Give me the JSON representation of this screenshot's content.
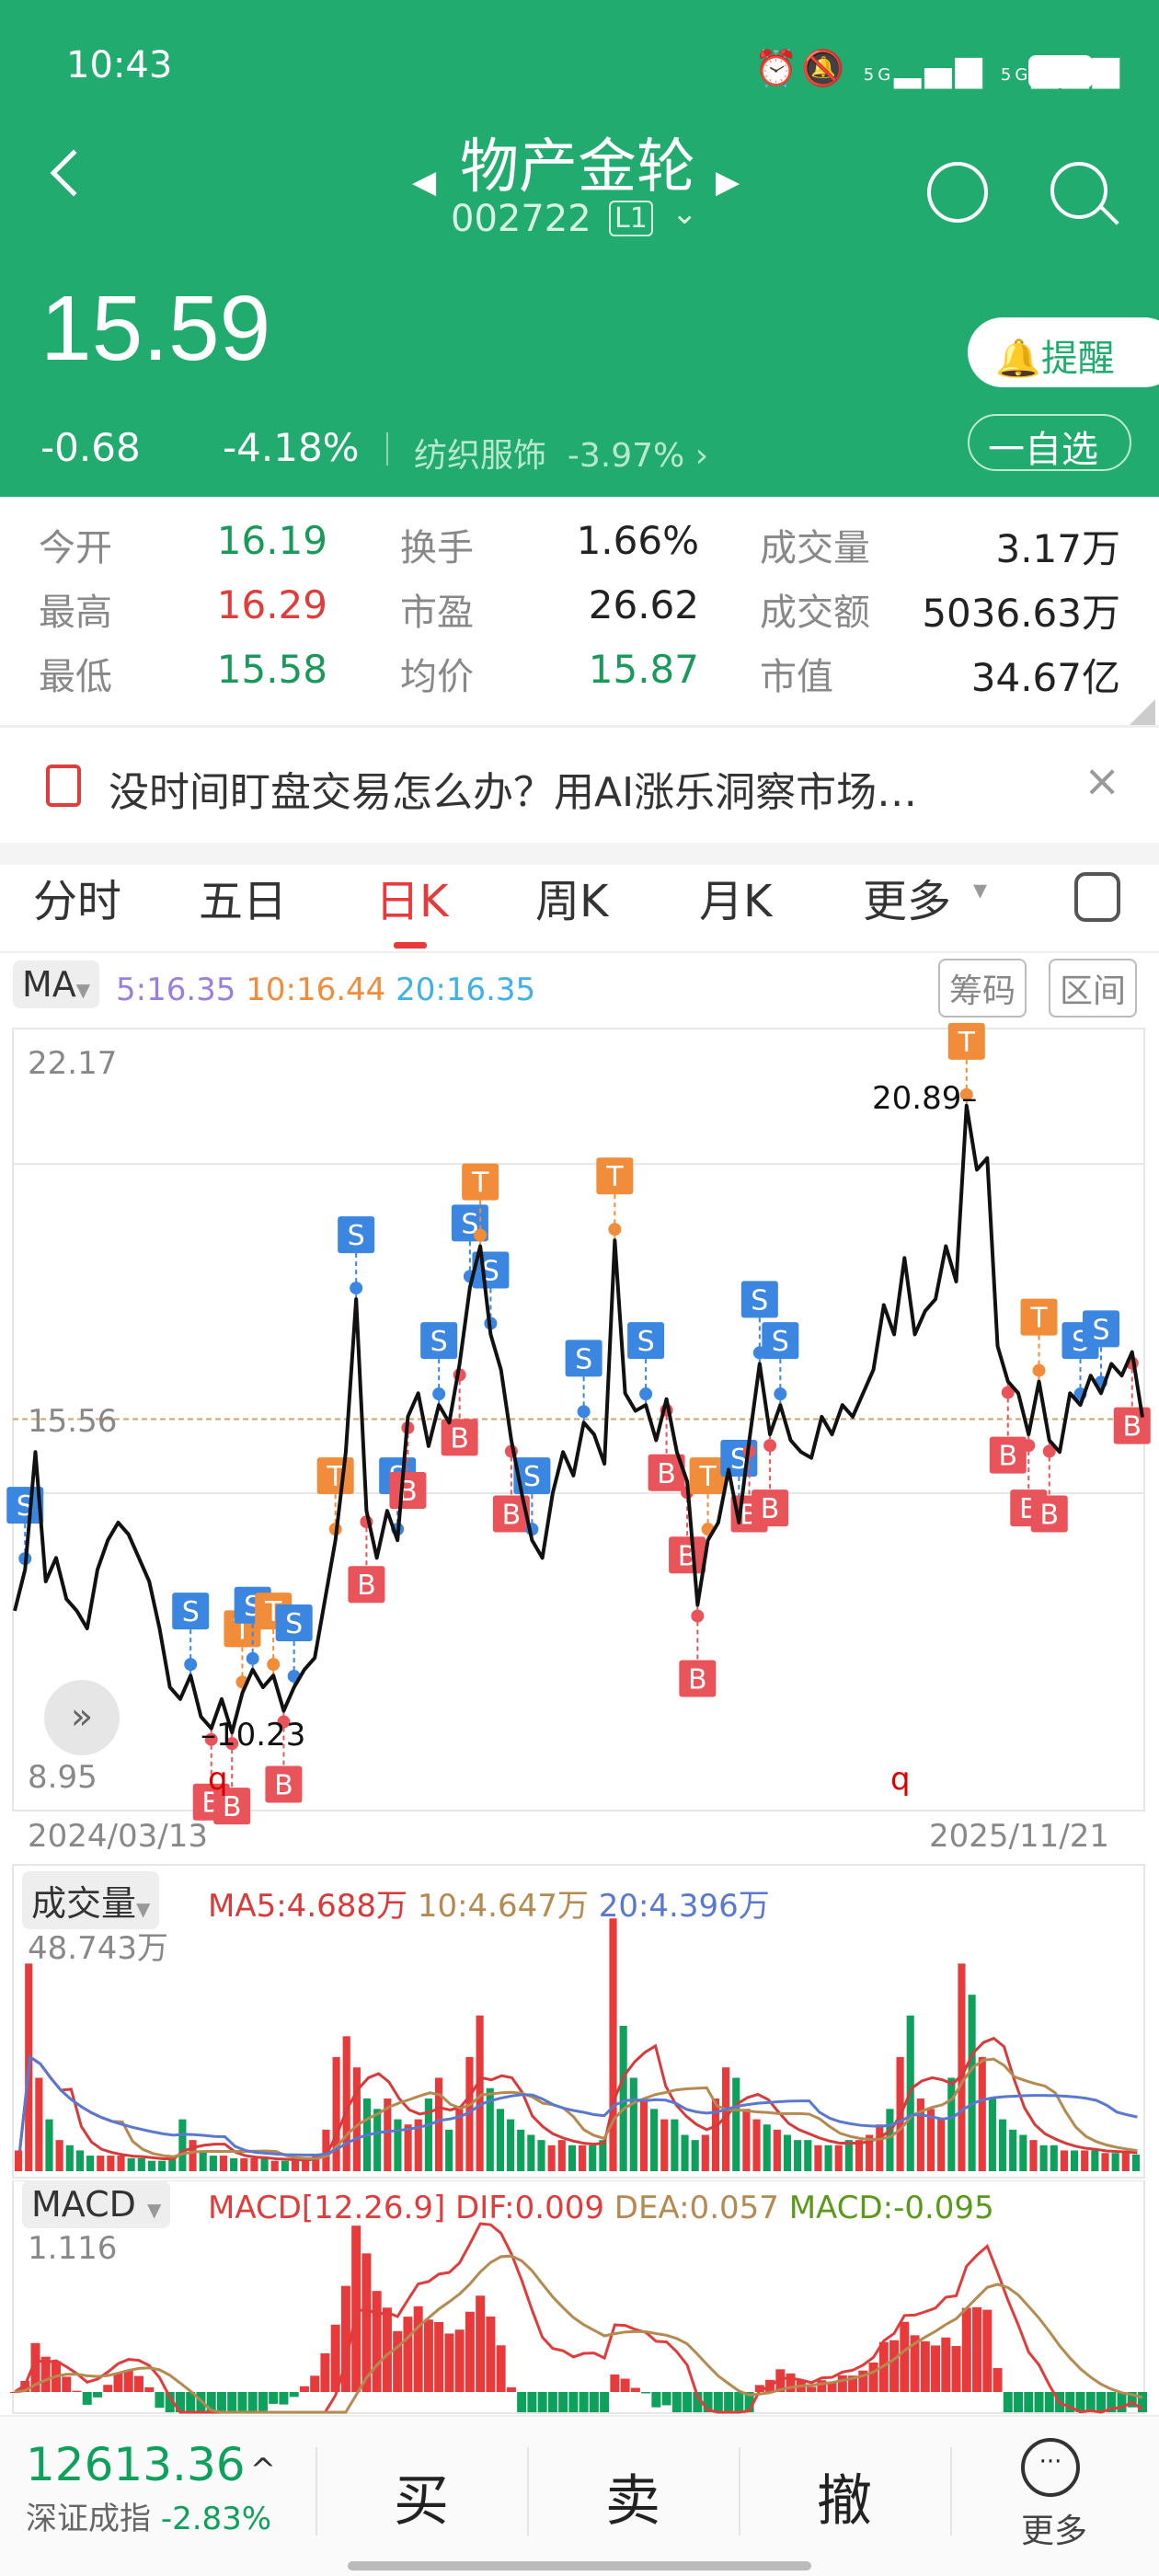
{
  "status": {
    "time": "10:43",
    "net1": "5G",
    "net2": "5G"
  },
  "header": {
    "title": "物产金轮",
    "code": "002722",
    "level": "L1",
    "price": "15.59",
    "change": "-0.68",
    "change_pct": "-4.18%",
    "sector": "纺织服饰",
    "sector_pct": "-3.97%",
    "alert_label": "提醒",
    "watch_label": "一自选"
  },
  "stats": [
    [
      {
        "label": "今开",
        "value": "16.19",
        "color": "#1a9a5a"
      },
      {
        "label": "换手",
        "value": "1.66%",
        "color": "#222"
      },
      {
        "label": "成交量",
        "value": "3.17万",
        "color": "#222"
      }
    ],
    [
      {
        "label": "最高",
        "value": "16.29",
        "color": "#e03c3c"
      },
      {
        "label": "市盈",
        "value": "26.62",
        "color": "#222"
      },
      {
        "label": "成交额",
        "value": "5036.63万",
        "color": "#222"
      }
    ],
    [
      {
        "label": "最低",
        "value": "15.58",
        "color": "#1a9a5a"
      },
      {
        "label": "均价",
        "value": "15.87",
        "color": "#1a9a5a"
      },
      {
        "label": "市值",
        "value": "34.67亿",
        "color": "#222"
      }
    ]
  ],
  "banner": {
    "text": "没时间盯盘交易怎么办？用AI涨乐洞察市场…"
  },
  "tabs": [
    {
      "label": "分时"
    },
    {
      "label": "五日"
    },
    {
      "label": "日K",
      "active": true
    },
    {
      "label": "周K"
    },
    {
      "label": "月K"
    },
    {
      "label": "更多"
    }
  ],
  "ma": {
    "tag": "MA",
    "ma5": "5:16.35",
    "ma10": "10:16.44",
    "ma20": "20:16.35",
    "chip_btn": "筹码",
    "range_btn": "区间"
  },
  "colors": {
    "up": "#e8393b",
    "down": "#0ea15c",
    "ma5": "#9b7fe0",
    "ma10": "#f08c3a",
    "ma20": "#3fb0e8",
    "buy": "#e8545a",
    "sell": "#3a86e0",
    "t": "#f08c3a"
  },
  "chart_data": {
    "type": "line",
    "y_max_label": "22.17",
    "y_min_label": "8.95",
    "ylim": [
      8.95,
      22.17
    ],
    "ref_label": "15.56",
    "ref_value": 15.56,
    "high_label": "20.89",
    "low_label": "10.23",
    "start_date": "2024/03/13",
    "end_date": "2025/11/21",
    "gridlines": [
      19.9,
      14.3
    ],
    "close": [
      12.3,
      13.0,
      15.0,
      12.8,
      13.2,
      12.5,
      12.3,
      12.0,
      13.0,
      13.5,
      13.8,
      13.6,
      13.2,
      12.8,
      12.0,
      11.0,
      10.8,
      11.2,
      10.5,
      10.3,
      10.8,
      10.23,
      10.9,
      11.3,
      11.0,
      11.2,
      10.6,
      11.0,
      11.3,
      11.5,
      12.5,
      13.5,
      15.0,
      17.6,
      14.0,
      13.2,
      14.0,
      13.5,
      15.6,
      16.0,
      15.1,
      15.8,
      15.5,
      16.5,
      17.8,
      18.5,
      17.0,
      16.4,
      15.2,
      14.3,
      13.5,
      13.2,
      14.3,
      15.0,
      14.6,
      15.5,
      15.3,
      14.8,
      18.6,
      16.0,
      15.7,
      15.8,
      15.2,
      15.9,
      15.0,
      14.5,
      12.4,
      13.5,
      13.8,
      14.7,
      13.8,
      15.2,
      16.5,
      15.3,
      15.8,
      15.2,
      15.0,
      14.9,
      15.6,
      15.3,
      15.8,
      15.6,
      16.0,
      16.4,
      17.5,
      17.0,
      18.3,
      17.0,
      17.4,
      17.6,
      18.5,
      17.9,
      20.89,
      19.8,
      20.0,
      16.8,
      16.2,
      16.0,
      15.3,
      16.2,
      15.2,
      15.0,
      16.0,
      15.8,
      16.3,
      16.0,
      16.5,
      16.3,
      16.7,
      15.59
    ],
    "markers": [
      {
        "i": 1,
        "t": "S"
      },
      {
        "i": 17,
        "t": "S"
      },
      {
        "i": 19,
        "t": "B"
      },
      {
        "i": 21,
        "t": "B"
      },
      {
        "i": 22,
        "t": "T"
      },
      {
        "i": 23,
        "t": "S"
      },
      {
        "i": 25,
        "t": "T"
      },
      {
        "i": 26,
        "t": "B"
      },
      {
        "i": 27,
        "t": "S"
      },
      {
        "i": 31,
        "t": "T"
      },
      {
        "i": 33,
        "t": "S"
      },
      {
        "i": 34,
        "t": "B"
      },
      {
        "i": 37,
        "t": "S"
      },
      {
        "i": 38,
        "t": "B"
      },
      {
        "i": 41,
        "t": "S"
      },
      {
        "i": 43,
        "t": "B"
      },
      {
        "i": 44,
        "t": "S"
      },
      {
        "i": 45,
        "t": "T"
      },
      {
        "i": 46,
        "t": "S"
      },
      {
        "i": 48,
        "t": "B"
      },
      {
        "i": 50,
        "t": "S"
      },
      {
        "i": 55,
        "t": "S"
      },
      {
        "i": 58,
        "t": "T"
      },
      {
        "i": 61,
        "t": "S"
      },
      {
        "i": 63,
        "t": "B"
      },
      {
        "i": 65,
        "t": "B"
      },
      {
        "i": 66,
        "t": "B"
      },
      {
        "i": 67,
        "t": "T"
      },
      {
        "i": 70,
        "t": "S"
      },
      {
        "i": 71,
        "t": "B"
      },
      {
        "i": 72,
        "t": "S"
      },
      {
        "i": 73,
        "t": "B"
      },
      {
        "i": 74,
        "t": "S"
      },
      {
        "i": 92,
        "t": "T"
      },
      {
        "i": 96,
        "t": "B"
      },
      {
        "i": 98,
        "t": "B"
      },
      {
        "i": 99,
        "t": "T"
      },
      {
        "i": 100,
        "t": "B"
      },
      {
        "i": 103,
        "t": "S"
      },
      {
        "i": 105,
        "t": "S"
      },
      {
        "i": 108,
        "t": "B"
      }
    ],
    "q_marks": [
      "q",
      "q"
    ]
  },
  "volume": {
    "tag": "成交量",
    "max_label": "48.743万",
    "ma5": "MA5:4.688万",
    "ma10": "10:4.647万",
    "ma20": "20:4.396万",
    "values": [
      4,
      40,
      18,
      10,
      6,
      5,
      4,
      3,
      3,
      3,
      3,
      2.5,
      2.5,
      2,
      2,
      3,
      10,
      6,
      4,
      3,
      3,
      2.5,
      2.5,
      2.5,
      2.5,
      2,
      2,
      2,
      2.5,
      3,
      8,
      22,
      26,
      20,
      14,
      12,
      14,
      10,
      9,
      10,
      14,
      18,
      8,
      12,
      22,
      30,
      16,
      12,
      10,
      8,
      7,
      6,
      5,
      6,
      5,
      5,
      5,
      6,
      48.7,
      28,
      18,
      14,
      12,
      10,
      10,
      7,
      6,
      7,
      14,
      20,
      18,
      12,
      10,
      9,
      8,
      7,
      6,
      6,
      5,
      5,
      5,
      6,
      6,
      7,
      9,
      12,
      22,
      30,
      14,
      12,
      10,
      18,
      40,
      34,
      22,
      14,
      10,
      8,
      7,
      6,
      5,
      5,
      4,
      4,
      4,
      4,
      3.5,
      3.5,
      3.5,
      3.2
    ]
  },
  "macd": {
    "tag": "MACD",
    "params": "MACD[12.26.9]",
    "dif": "DIF:0.009",
    "dea": "DEA:0.057",
    "macd": "MACD:-0.095",
    "max_label": "1.116",
    "colors": {
      "dif": "#e03c3c",
      "dea": "#b58a50",
      "macd": "#5a9a1a"
    }
  },
  "bottom": {
    "index_value": "12613.36",
    "index_arrow": "^",
    "index_name": "深证成指",
    "index_pct": "-2.83%",
    "buy": "买",
    "sell": "卖",
    "cancel": "撤",
    "more": "更多"
  }
}
